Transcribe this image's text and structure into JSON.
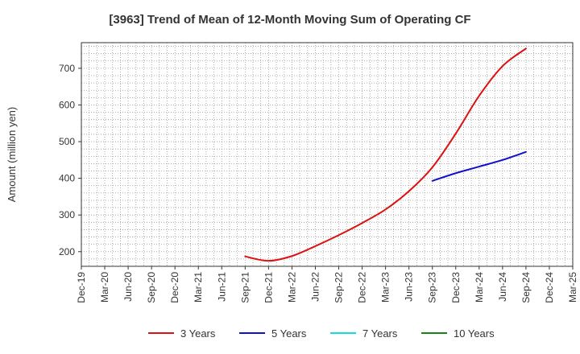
{
  "chart_data": {
    "type": "line",
    "title": "[3963]  Trend of Mean of 12-Month Moving Sum of Operating CF",
    "xlabel": "",
    "ylabel": "Amount (million yen)",
    "ylim": [
      160,
      770
    ],
    "yticks": [
      200,
      300,
      400,
      500,
      600,
      700
    ],
    "x_categories": [
      "Dec-19",
      "Mar-20",
      "Jun-20",
      "Sep-20",
      "Dec-20",
      "Mar-21",
      "Jun-21",
      "Sep-21",
      "Dec-21",
      "Mar-22",
      "Jun-22",
      "Sep-22",
      "Dec-22",
      "Mar-23",
      "Jun-23",
      "Sep-23",
      "Dec-23",
      "Mar-24",
      "Jun-24",
      "Sep-24",
      "Dec-24",
      "Mar-25"
    ],
    "grid": true,
    "legend_position": "bottom",
    "series": [
      {
        "name": "3 Years",
        "color": "#dd1111",
        "points": [
          [
            "Sep-21",
            187
          ],
          [
            "Dec-21",
            175
          ],
          [
            "Mar-22",
            188
          ],
          [
            "Jun-22",
            215
          ],
          [
            "Sep-22",
            245
          ],
          [
            "Dec-22",
            278
          ],
          [
            "Mar-23",
            315
          ],
          [
            "Jun-23",
            365
          ],
          [
            "Sep-23",
            430
          ],
          [
            "Dec-23",
            522
          ],
          [
            "Mar-24",
            625
          ],
          [
            "Jun-24",
            706
          ],
          [
            "Sep-24",
            754
          ]
        ]
      },
      {
        "name": "5 Years",
        "color": "#1111cc",
        "points": [
          [
            "Sep-23",
            393
          ],
          [
            "Dec-23",
            414
          ],
          [
            "Mar-24",
            432
          ],
          [
            "Jun-24",
            450
          ],
          [
            "Sep-24",
            472
          ]
        ]
      },
      {
        "name": "7 Years",
        "color": "#11dddd",
        "points": []
      },
      {
        "name": "10 Years",
        "color": "#118811",
        "points": []
      }
    ]
  }
}
